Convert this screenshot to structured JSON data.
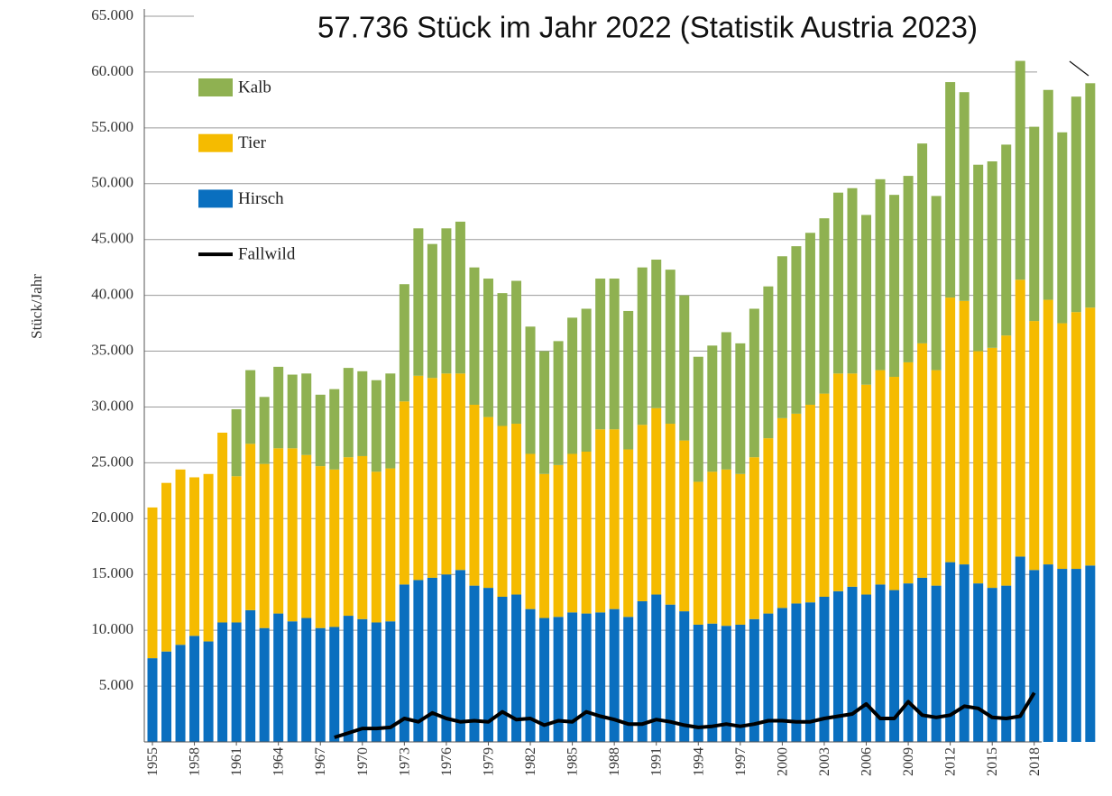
{
  "chart_data": {
    "type": "bar",
    "stacked": true,
    "title": "57.736 Stück im Jahr 2022 (Statistik Austria 2023)",
    "y_label": "Stück/Jahr",
    "categories": [
      "1955",
      null,
      null,
      "1958",
      null,
      null,
      "1961",
      null,
      null,
      "1964",
      null,
      null,
      "1967",
      null,
      null,
      "1970",
      null,
      null,
      "1973",
      null,
      null,
      "1976",
      null,
      null,
      "1979",
      null,
      null,
      "1982",
      null,
      null,
      "1985",
      null,
      null,
      "1988",
      null,
      null,
      "1991",
      null,
      null,
      "1994",
      null,
      null,
      "1997",
      null,
      null,
      "2000",
      null,
      null,
      "2003",
      null,
      null,
      "2006",
      null,
      null,
      "2009",
      null,
      null,
      "2012",
      null,
      null,
      "2015",
      null,
      null,
      "2018",
      null,
      null,
      null,
      null
    ],
    "ylim": [
      0,
      65000
    ],
    "yticks": [
      {
        "value": 5000,
        "label": "5.000"
      },
      {
        "value": 10000,
        "label": "10.000"
      },
      {
        "value": 15000,
        "label": "15.000"
      },
      {
        "value": 20000,
        "label": "20.000"
      },
      {
        "value": 25000,
        "label": "25.000"
      },
      {
        "value": 30000,
        "label": "30.000"
      },
      {
        "value": 35000,
        "label": "35.000"
      },
      {
        "value": 40000,
        "label": "40.000"
      },
      {
        "value": 45000,
        "label": "45.000"
      },
      {
        "value": 50000,
        "label": "50.000"
      },
      {
        "value": 55000,
        "label": "55.000"
      },
      {
        "value": 60000,
        "label": "60.000"
      },
      {
        "value": 65000,
        "label": "65.000"
      }
    ],
    "grid": true,
    "legend": "top-left",
    "series": [
      {
        "name": "Hirsch",
        "color": "#0a6fbf",
        "values": [
          7500,
          8100,
          8700,
          9500,
          9000,
          10700,
          10700,
          11800,
          10200,
          11500,
          10800,
          11100,
          10200,
          10300,
          11300,
          11000,
          10700,
          10800,
          14100,
          14500,
          14700,
          15000,
          15400,
          14000,
          13800,
          13000,
          13200,
          11900,
          11100,
          11200,
          11600,
          11500,
          11600,
          11900,
          11200,
          12600,
          13200,
          12300,
          11700,
          10500,
          10600,
          10400,
          10500,
          11000,
          11500,
          12000,
          12400,
          12500,
          13000,
          13500,
          13900,
          13200,
          14100,
          13600,
          14200,
          14700,
          14000,
          16100,
          15900,
          14200,
          13800,
          14000,
          16600,
          15400,
          15900,
          15500,
          15500,
          15800
        ]
      },
      {
        "name": "Tier",
        "color": "#f5bb00",
        "values": [
          13500,
          15100,
          15700,
          14200,
          15000,
          17000,
          13100,
          14900,
          14700,
          14800,
          15500,
          14600,
          14500,
          14100,
          14200,
          14600,
          13500,
          13700,
          16400,
          18300,
          17900,
          18000,
          17600,
          16200,
          15300,
          15300,
          15300,
          13900,
          12900,
          13600,
          14200,
          14500,
          16400,
          16100,
          15000,
          15800,
          16700,
          16200,
          15300,
          12800,
          13600,
          14000,
          13500,
          14500,
          15700,
          17000,
          17000,
          17700,
          18200,
          19500,
          19100,
          18800,
          19200,
          19100,
          19800,
          21000,
          19300,
          23700,
          23600,
          20800,
          21500,
          22400,
          24800,
          22300,
          23700,
          22000,
          23000,
          23100
        ]
      },
      {
        "name": "Kalb",
        "color": "#8fb151",
        "values": [
          null,
          null,
          null,
          null,
          null,
          null,
          6000,
          6600,
          6000,
          7300,
          6600,
          7300,
          6400,
          7200,
          8000,
          7600,
          8200,
          8500,
          10500,
          13200,
          12000,
          13000,
          13600,
          12300,
          12400,
          11900,
          12800,
          11400,
          11000,
          11100,
          12200,
          12800,
          13500,
          13500,
          12400,
          14100,
          13300,
          13800,
          13000,
          11200,
          11300,
          12300,
          11700,
          13300,
          13600,
          14500,
          15000,
          15400,
          15700,
          16200,
          16600,
          15200,
          17100,
          16300,
          16700,
          17900,
          15600,
          19300,
          18700,
          16700,
          16700,
          17100,
          19600,
          17400,
          18800,
          17100,
          19300,
          20100
        ]
      },
      {
        "name": "Fallwild",
        "color": "#000000",
        "type": "line",
        "values": [
          null,
          null,
          null,
          null,
          null,
          null,
          null,
          null,
          null,
          null,
          null,
          null,
          null,
          400,
          800,
          1200,
          1200,
          1300,
          2100,
          1800,
          2600,
          2100,
          1800,
          1900,
          1800,
          2700,
          2000,
          2100,
          1500,
          1900,
          1800,
          2700,
          2300,
          2000,
          1600,
          1600,
          2000,
          1800,
          1500,
          1300,
          1400,
          1600,
          1400,
          1600,
          1900,
          1900,
          1800,
          1800,
          2100,
          2300,
          2500,
          3400,
          2100,
          2100,
          3600,
          2400,
          2200,
          2400,
          3200,
          3000,
          2200,
          2100,
          2300,
          4400,
          null,
          null,
          null,
          null
        ]
      }
    ]
  }
}
